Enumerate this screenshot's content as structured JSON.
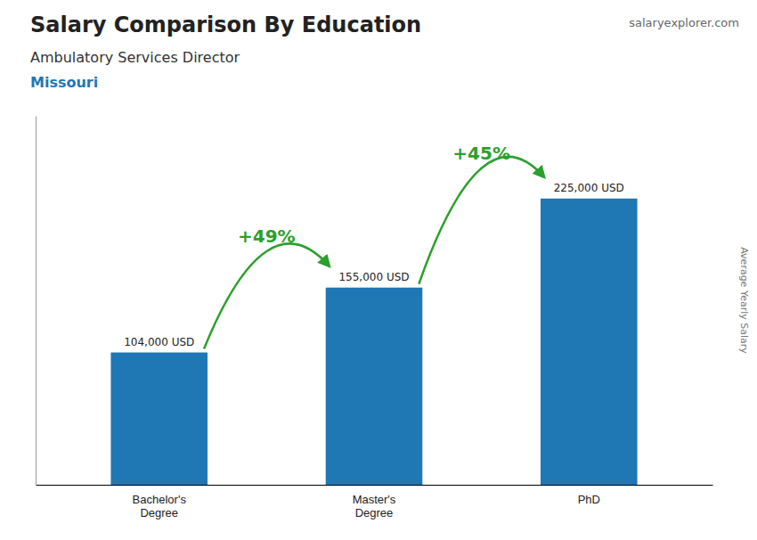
{
  "chart_data": {
    "type": "bar",
    "title": "Salary Comparison By Education",
    "subtitle": "Ambulatory Services Director",
    "annotations": [
      "Missouri",
      "salaryexplorer.com"
    ],
    "change_labels": [
      "+49%",
      "+45%"
    ],
    "ylabel": "Average Yearly Salary",
    "categories": [
      "Bachelor's\nDegree",
      "Master's\nDegree",
      "PhD"
    ],
    "values": [
      104000,
      155000,
      225000
    ],
    "value_labels": [
      "104,000 USD",
      "155,000 USD",
      "225,000 USD"
    ],
    "data_labels": true,
    "ylim": [
      0,
      290000
    ],
    "tick_labels": "x",
    "grid": false
  }
}
